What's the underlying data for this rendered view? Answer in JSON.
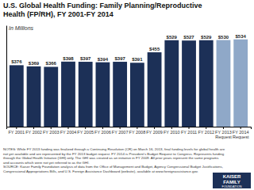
{
  "chart_data": {
    "type": "bar",
    "title": "U.S. Global Health Funding: Family Planning/Reproductive\nHealth (FP/RH), FY 2001-FY 2014",
    "subtitle": "In Millions",
    "categories": [
      "FY 2001",
      "FY 2002",
      "FY 2003",
      "FY 2004",
      "FY 2005",
      "FY 2006",
      "FY 2007",
      "FY 2008",
      "FY 2009",
      "FY 2010",
      "FY 2011",
      "FY 2012",
      "FY 2013\nRequest",
      "FY 2014\nRequest"
    ],
    "values": [
      376,
      369,
      366,
      398,
      397,
      394,
      397,
      391,
      455,
      529,
      527,
      529,
      530,
      534
    ],
    "value_labels": [
      "$376",
      "$369",
      "$366",
      "$398",
      "$397",
      "$394",
      "$397",
      "$391",
      "$455",
      "$529",
      "$527",
      "$529",
      "$530",
      "$534"
    ],
    "colors": [
      "#1c3057",
      "#1c3057",
      "#1c3057",
      "#1c3057",
      "#1c3057",
      "#1c3057",
      "#1c3057",
      "#1c3057",
      "#1c3057",
      "#1c3057",
      "#1c3057",
      "#1c3057",
      "#8fa8c8",
      "#8fa8c8"
    ],
    "ylim": [
      0,
      620
    ],
    "yticks": [],
    "tick_labels": "x",
    "data_labels": true,
    "grid": false,
    "annotations": [
      "NOTES: While FY 2013 funding was finalized through a Continuing Resolution (CR) on March 16, 2013, final funding levels for global health are",
      "not yet available and are represented by the FY 2013 budget request. FY 2014 is President's Budget Request to Congress. Represents funding",
      "through the Global Health Initiative (GHI) only. The GHI was created as an initiative in FY 2009.  All prior years represent the same programs",
      "and accounts which were not yet referred to as the GHI.",
      "SOURCE: Kaiser Family Foundation analysis of data from the Office of Management and Budget, Agency Congressional Budget Justifications,",
      "Congressional Appropriations Bills, and U.S. Foreign Assistance Dashboard (website), available at www.foreignassistance.gov.",
      "KAISER",
      "FAMILY",
      "FOUNDATION"
    ]
  }
}
